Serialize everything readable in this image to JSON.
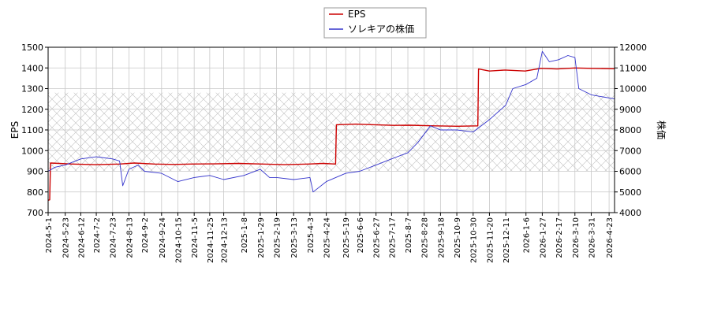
{
  "chart_data": {
    "type": "line",
    "xlabel": "",
    "y_left_label": "EPS",
    "y_right_label": "株価",
    "y_left_lim": [
      700,
      1500
    ],
    "y_right_lim": [
      4000,
      12000
    ],
    "y_left_ticks": [
      700,
      800,
      900,
      1000,
      1100,
      1200,
      1300,
      1400,
      1500
    ],
    "y_right_ticks": [
      4000,
      5000,
      6000,
      7000,
      8000,
      9000,
      10000,
      11000,
      12000
    ],
    "x_range": [
      "2024-05-01",
      "2026-04-30"
    ],
    "x_ticks": [
      "2024-5-1",
      "2024-5-23",
      "2024-6-12",
      "2024-7-2",
      "2024-7-23",
      "2024-8-13",
      "2024-9-2",
      "2024-9-24",
      "2024-10-15",
      "2024-11-5",
      "2024-11-25",
      "2024-12-13",
      "2025-1-8",
      "2025-1-29",
      "2025-2-19",
      "2025-3-13",
      "2025-4-3",
      "2025-4-24",
      "2025-5-19",
      "2025-6-6",
      "2025-6-27",
      "2025-7-17",
      "2025-8-7",
      "2025-8-28",
      "2025-9-18",
      "2025-10-9",
      "2025-10-30",
      "2025-11-20",
      "2025-12-11",
      "2026-1-6",
      "2026-1-27",
      "2026-2-17",
      "2026-3-10",
      "2026-3-31",
      "2026-4-23"
    ],
    "grid": true,
    "legend_position": "top-center",
    "hatch_band_right_axis": [
      6000,
      9800
    ],
    "series": [
      {
        "name": "EPS",
        "axis": "left",
        "color": "#cc0000",
        "points": [
          [
            "2024-05-01",
            760
          ],
          [
            "2024-05-03",
            762
          ],
          [
            "2024-05-04",
            940
          ],
          [
            "2024-05-15",
            938
          ],
          [
            "2024-06-01",
            935
          ],
          [
            "2024-07-01",
            932
          ],
          [
            "2024-08-01",
            935
          ],
          [
            "2024-08-20",
            940
          ],
          [
            "2024-09-15",
            935
          ],
          [
            "2024-10-10",
            933
          ],
          [
            "2024-11-01",
            935
          ],
          [
            "2024-12-01",
            936
          ],
          [
            "2025-01-01",
            938
          ],
          [
            "2025-02-01",
            935
          ],
          [
            "2025-03-01",
            932
          ],
          [
            "2025-04-01",
            935
          ],
          [
            "2025-04-20",
            938
          ],
          [
            "2025-05-06",
            935
          ],
          [
            "2025-05-07",
            1125
          ],
          [
            "2025-06-01",
            1128
          ],
          [
            "2025-06-25",
            1125
          ],
          [
            "2025-07-20",
            1122
          ],
          [
            "2025-08-10",
            1123
          ],
          [
            "2025-09-10",
            1120
          ],
          [
            "2025-10-10",
            1118
          ],
          [
            "2025-11-05",
            1120
          ],
          [
            "2025-11-06",
            1395
          ],
          [
            "2025-11-20",
            1385
          ],
          [
            "2025-12-10",
            1390
          ],
          [
            "2026-01-05",
            1385
          ],
          [
            "2026-01-25",
            1398
          ],
          [
            "2026-02-15",
            1395
          ],
          [
            "2026-03-10",
            1400
          ],
          [
            "2026-03-31",
            1398
          ],
          [
            "2026-04-30",
            1396
          ]
        ]
      },
      {
        "name": "ソレキアの株価",
        "axis": "right",
        "color": "#3333cc",
        "points": [
          [
            "2024-05-01",
            6000
          ],
          [
            "2024-05-10",
            6200
          ],
          [
            "2024-05-23",
            6300
          ],
          [
            "2024-06-12",
            6600
          ],
          [
            "2024-07-02",
            6700
          ],
          [
            "2024-07-23",
            6600
          ],
          [
            "2024-08-01",
            6500
          ],
          [
            "2024-08-05",
            5300
          ],
          [
            "2024-08-13",
            6100
          ],
          [
            "2024-08-25",
            6300
          ],
          [
            "2024-09-02",
            6000
          ],
          [
            "2024-09-24",
            5900
          ],
          [
            "2024-10-15",
            5500
          ],
          [
            "2024-11-05",
            5700
          ],
          [
            "2024-11-25",
            5800
          ],
          [
            "2024-12-13",
            5600
          ],
          [
            "2025-01-08",
            5800
          ],
          [
            "2025-01-29",
            6100
          ],
          [
            "2025-02-10",
            5700
          ],
          [
            "2025-02-19",
            5700
          ],
          [
            "2025-03-13",
            5600
          ],
          [
            "2025-04-03",
            5700
          ],
          [
            "2025-04-07",
            5000
          ],
          [
            "2025-04-24",
            5500
          ],
          [
            "2025-05-19",
            5900
          ],
          [
            "2025-06-06",
            6000
          ],
          [
            "2025-06-27",
            6300
          ],
          [
            "2025-07-17",
            6600
          ],
          [
            "2025-08-07",
            6900
          ],
          [
            "2025-08-20",
            7400
          ],
          [
            "2025-08-28",
            7800
          ],
          [
            "2025-09-05",
            8200
          ],
          [
            "2025-09-18",
            8000
          ],
          [
            "2025-10-09",
            8000
          ],
          [
            "2025-10-30",
            7900
          ],
          [
            "2025-11-20",
            8500
          ],
          [
            "2025-12-11",
            9200
          ],
          [
            "2025-12-20",
            10000
          ],
          [
            "2026-01-06",
            10200
          ],
          [
            "2026-01-20",
            10500
          ],
          [
            "2026-01-27",
            11800
          ],
          [
            "2026-02-05",
            11300
          ],
          [
            "2026-02-17",
            11400
          ],
          [
            "2026-03-01",
            11600
          ],
          [
            "2026-03-10",
            11500
          ],
          [
            "2026-03-15",
            10000
          ],
          [
            "2026-03-31",
            9700
          ],
          [
            "2026-04-15",
            9600
          ],
          [
            "2026-04-30",
            9500
          ]
        ]
      }
    ]
  }
}
